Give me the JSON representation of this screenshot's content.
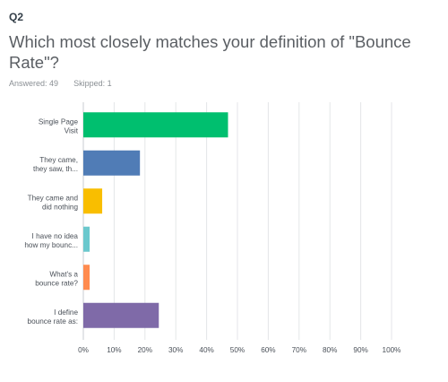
{
  "question": {
    "number": "Q2",
    "title": "Which most closely matches your definition of \"Bounce Rate\"?",
    "answered_label": "Answered:",
    "answered": "49",
    "skipped_label": "Skipped:",
    "skipped": "1"
  },
  "chart_data": {
    "type": "bar",
    "orientation": "horizontal",
    "categories": [
      [
        "Single Page",
        "Visit"
      ],
      [
        "They came,",
        "they saw, th..."
      ],
      [
        "They came and",
        "did nothing"
      ],
      [
        "I have no idea",
        "how my bounc..."
      ],
      [
        "What's a",
        "bounce rate?"
      ],
      [
        "I define",
        "bounce rate as:"
      ]
    ],
    "values": [
      46.94,
      18.37,
      6.12,
      2.04,
      2.04,
      24.49
    ],
    "colors": [
      "#00bf6f",
      "#507cb6",
      "#f9be00",
      "#6bc8cd",
      "#ff8b4f",
      "#7f6aa8"
    ],
    "xlim": [
      0,
      100
    ],
    "xticks": [
      "0%",
      "10%",
      "20%",
      "30%",
      "40%",
      "50%",
      "60%",
      "70%",
      "80%",
      "90%",
      "100%"
    ],
    "grid": true,
    "legend": "none"
  }
}
